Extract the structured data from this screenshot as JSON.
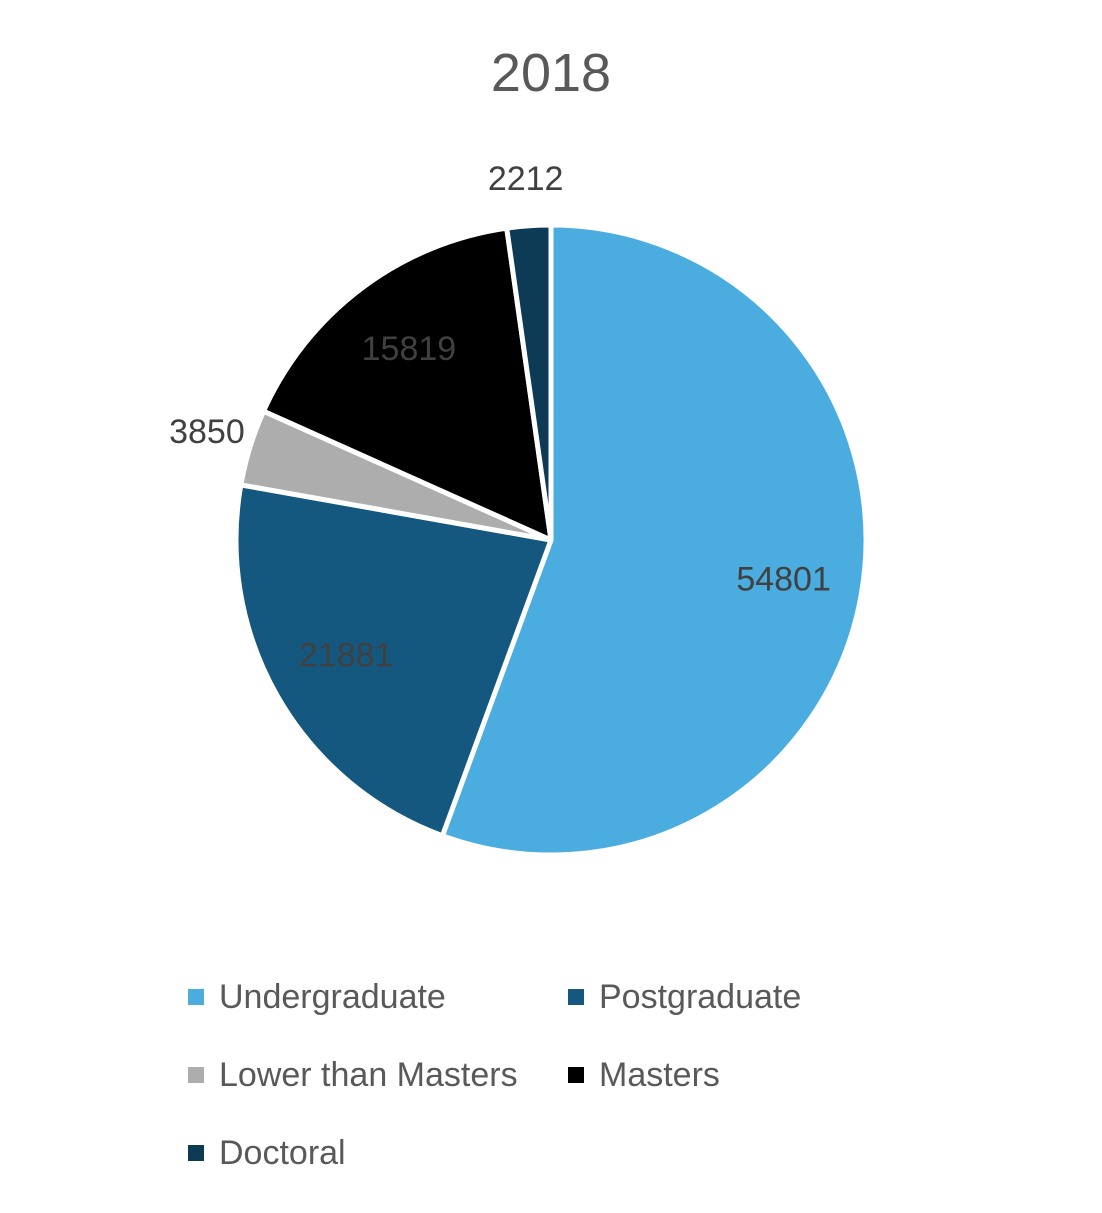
{
  "chart_data": {
    "type": "pie",
    "title": "2018",
    "categories": [
      "Undergraduate",
      "Postgraduate",
      "Lower than Masters",
      "Masters",
      "Doctoral"
    ],
    "values": [
      54801,
      21881,
      3850,
      15819,
      2212
    ],
    "colors": [
      "#4BACE0",
      "#15587F",
      "#ADADAD",
      "#000000",
      "#0D3A55"
    ],
    "label_colors": [
      "#404040",
      "#404040",
      "#404040",
      "#404040",
      "#404040"
    ],
    "start_angle_deg": 0,
    "direction": "clockwise",
    "legend_position": "bottom"
  }
}
